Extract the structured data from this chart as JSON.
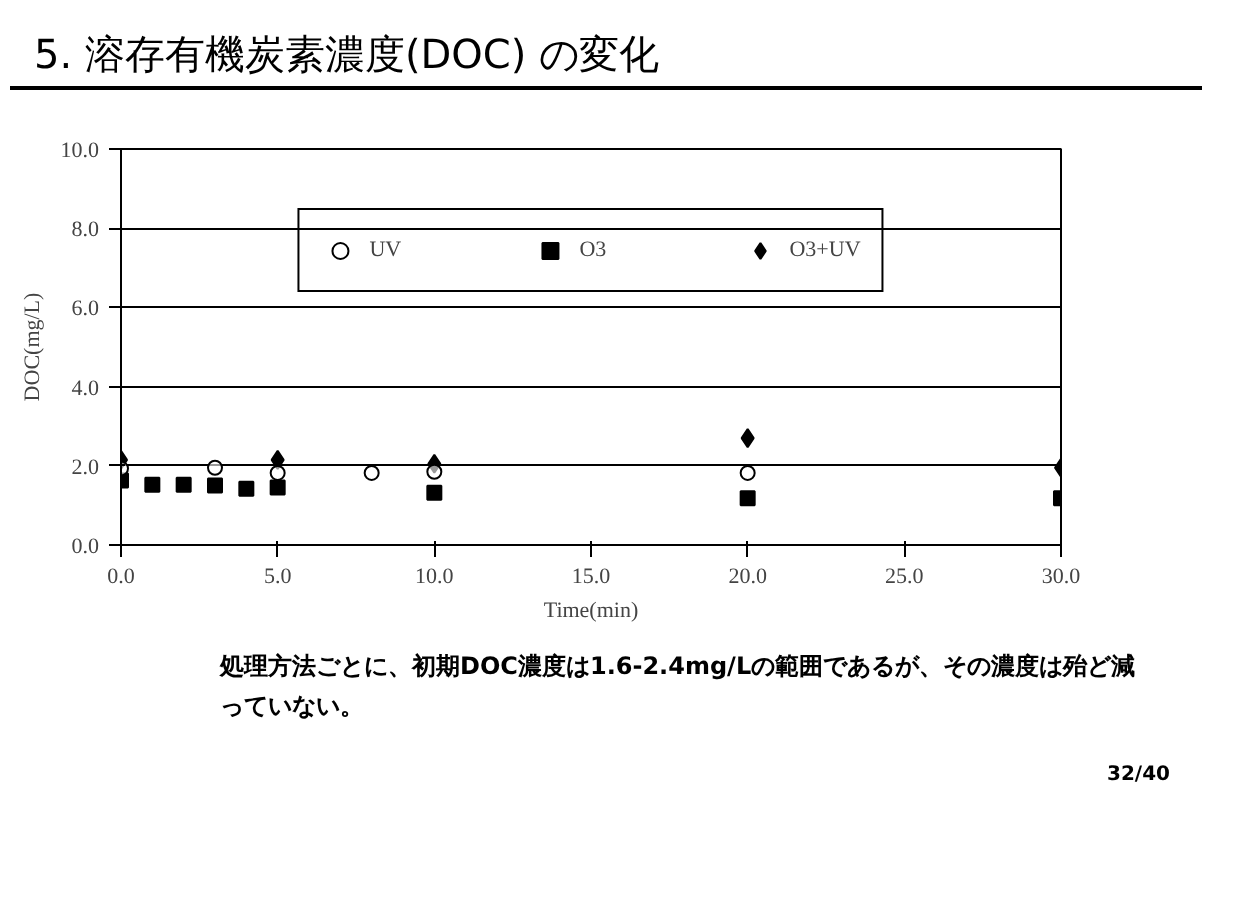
{
  "chart_data": {
    "type": "scatter",
    "title": "5. 溶存有機炭素濃度(DOC) の変化",
    "xlabel": "Time(min)",
    "ylabel": "DOC(mg/L)",
    "xlim": [
      0,
      30
    ],
    "ylim": [
      0,
      10
    ],
    "xticks": [
      {
        "value": 0,
        "label": "0.0"
      },
      {
        "value": 5,
        "label": "5.0"
      },
      {
        "value": 10,
        "label": "10.0"
      },
      {
        "value": 15,
        "label": "15.0"
      },
      {
        "value": 20,
        "label": "20.0"
      },
      {
        "value": 25,
        "label": "25.0"
      },
      {
        "value": 30,
        "label": "30.0"
      }
    ],
    "yticks": [
      {
        "value": 0,
        "label": "0.0"
      },
      {
        "value": 2,
        "label": "2.0"
      },
      {
        "value": 4,
        "label": "4.0"
      },
      {
        "value": 6,
        "label": "6.0"
      },
      {
        "value": 8,
        "label": "8.0"
      },
      {
        "value": 10,
        "label": "10.0"
      }
    ],
    "grid": "y",
    "legend": "top",
    "series": [
      {
        "name": "UV",
        "color": "#000000",
        "marker": "circle",
        "x": [
          0,
          3,
          5,
          8,
          10,
          20
        ],
        "values": [
          1.93,
          1.95,
          1.82,
          1.82,
          1.85,
          1.82
        ]
      },
      {
        "name": "O3",
        "color": "#000000",
        "marker": "square",
        "x": [
          0,
          1,
          2,
          3,
          4,
          5,
          10,
          20,
          30
        ],
        "values": [
          1.63,
          1.52,
          1.52,
          1.5,
          1.42,
          1.45,
          1.32,
          1.18,
          1.18
        ]
      },
      {
        "name": "O3+UV",
        "color": "#000000",
        "marker": "diamond",
        "x": [
          0,
          5,
          10,
          20,
          30
        ],
        "values": [
          2.15,
          2.15,
          2.05,
          2.7,
          1.95
        ]
      }
    ],
    "annotations": [
      "処理方法ごとに、初期DOC濃度は1.6-2.4mg/Lの範囲であるが、その濃度は殆ど減っていない。",
      "32/40"
    ]
  }
}
